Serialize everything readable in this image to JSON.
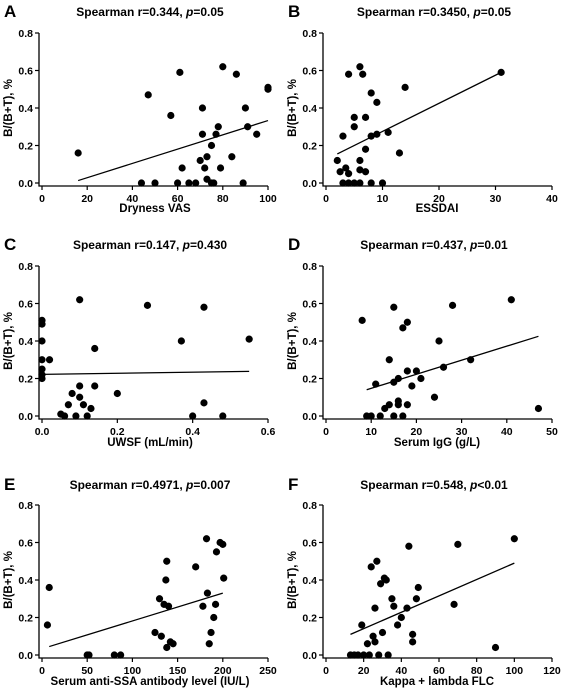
{
  "chart_data": [
    {
      "letter": "A",
      "type": "scatter",
      "title_prefix": "Spearman r=0.344, ",
      "title_p": "p",
      "title_suffix": "=0.05",
      "xlabel": "Dryness VAS",
      "ylabel": "B/(B+T), %",
      "xlim": [
        0,
        100
      ],
      "ylim": [
        0,
        0.8
      ],
      "xticks": [
        0,
        20,
        40,
        60,
        80,
        100
      ],
      "yticks": [
        0.0,
        0.2,
        0.4,
        0.6,
        0.8
      ],
      "xtick_labels": [
        "0",
        "20",
        "40",
        "60",
        "80",
        "100"
      ],
      "ytick_labels": [
        "0.0",
        "0.2",
        "0.4",
        "0.6",
        "0.8"
      ],
      "fit": [
        [
          16,
          0.013
        ],
        [
          100,
          0.333
        ]
      ],
      "points": [
        [
          16,
          0.16
        ],
        [
          44,
          0.0
        ],
        [
          47,
          0.47
        ],
        [
          50,
          0.0
        ],
        [
          57,
          0.36
        ],
        [
          60,
          0.0
        ],
        [
          61,
          0.59
        ],
        [
          62,
          0.08
        ],
        [
          65,
          0.0
        ],
        [
          68,
          0.0
        ],
        [
          70,
          0.12
        ],
        [
          71,
          0.26
        ],
        [
          71,
          0.4
        ],
        [
          72,
          0.08
        ],
        [
          73,
          0.02
        ],
        [
          73,
          0.14
        ],
        [
          75,
          0.2
        ],
        [
          75,
          0.0
        ],
        [
          76,
          0.0
        ],
        [
          77,
          0.26
        ],
        [
          78,
          0.3
        ],
        [
          79,
          0.08
        ],
        [
          80,
          0.62
        ],
        [
          84,
          0.14
        ],
        [
          86,
          0.58
        ],
        [
          89,
          0.0
        ],
        [
          90,
          0.4
        ],
        [
          91,
          0.3
        ],
        [
          95,
          0.26
        ],
        [
          100,
          0.5
        ],
        [
          100,
          0.51
        ]
      ]
    },
    {
      "letter": "B",
      "type": "scatter",
      "title_prefix": "Spearman r=0.3450, ",
      "title_p": "p",
      "title_suffix": "=0.05",
      "xlabel": "ESSDAI",
      "ylabel": "B/(B+T), %",
      "xlim": [
        0,
        40
      ],
      "ylim": [
        0,
        0.8
      ],
      "xticks": [
        0,
        10,
        20,
        30,
        40
      ],
      "yticks": [
        0.0,
        0.2,
        0.4,
        0.6,
        0.8
      ],
      "xtick_labels": [
        "0",
        "10",
        "20",
        "30",
        "40"
      ],
      "ytick_labels": [
        "0.0",
        "0.2",
        "0.4",
        "0.6",
        "0.8"
      ],
      "fit": [
        [
          2,
          0.155
        ],
        [
          31,
          0.59
        ]
      ],
      "points": [
        [
          2,
          0.12
        ],
        [
          2.5,
          0.06
        ],
        [
          3,
          0.25
        ],
        [
          3,
          0.0
        ],
        [
          3.5,
          0.08
        ],
        [
          4,
          0.0
        ],
        [
          4,
          0.05
        ],
        [
          4,
          0.58
        ],
        [
          5,
          0.0
        ],
        [
          5,
          0.3
        ],
        [
          5,
          0.35
        ],
        [
          6,
          0.07
        ],
        [
          6,
          0.12
        ],
        [
          6,
          0.62
        ],
        [
          6,
          0.0
        ],
        [
          6.5,
          0.58
        ],
        [
          7,
          0.35
        ],
        [
          7,
          0.18
        ],
        [
          7,
          0.06
        ],
        [
          8,
          0.0
        ],
        [
          8,
          0.48
        ],
        [
          8,
          0.25
        ],
        [
          9,
          0.26
        ],
        [
          9,
          0.43
        ],
        [
          10,
          0.0
        ],
        [
          11,
          0.27
        ],
        [
          13,
          0.16
        ],
        [
          14,
          0.51
        ],
        [
          31,
          0.59
        ]
      ]
    },
    {
      "letter": "C",
      "type": "scatter",
      "title_prefix": "Spearman r=0.147, ",
      "title_p": "p",
      "title_suffix": "=0.430",
      "xlabel": "UWSF (mL/min)",
      "ylabel": "B/(B+T), %",
      "xlim": [
        0,
        0.6
      ],
      "ylim": [
        0,
        0.8
      ],
      "xticks": [
        0,
        0.2,
        0.4,
        0.6
      ],
      "yticks": [
        0.0,
        0.2,
        0.4,
        0.6,
        0.8
      ],
      "xtick_labels": [
        "0.0",
        "0.2",
        "0.4",
        "0.6"
      ],
      "ytick_labels": [
        "0.0",
        "0.2",
        "0.4",
        "0.6",
        "0.8"
      ],
      "fit": [
        [
          0,
          0.222
        ],
        [
          0.55,
          0.238
        ]
      ],
      "points": [
        [
          0,
          0.51
        ],
        [
          0,
          0.49
        ],
        [
          0,
          0.4
        ],
        [
          0,
          0.3
        ],
        [
          0,
          0.25
        ],
        [
          0,
          0.22
        ],
        [
          0,
          0.2
        ],
        [
          0.02,
          0.3
        ],
        [
          0.05,
          0.01
        ],
        [
          0.06,
          0.0
        ],
        [
          0.07,
          0.06
        ],
        [
          0.08,
          0.12
        ],
        [
          0.09,
          0.0
        ],
        [
          0.1,
          0.62
        ],
        [
          0.1,
          0.16
        ],
        [
          0.1,
          0.1
        ],
        [
          0.11,
          0.06
        ],
        [
          0.12,
          0.0
        ],
        [
          0.13,
          0.04
        ],
        [
          0.14,
          0.36
        ],
        [
          0.14,
          0.16
        ],
        [
          0.2,
          0.12
        ],
        [
          0.28,
          0.59
        ],
        [
          0.37,
          0.4
        ],
        [
          0.4,
          0.0
        ],
        [
          0.43,
          0.58
        ],
        [
          0.43,
          0.07
        ],
        [
          0.48,
          0.0
        ],
        [
          0.55,
          0.41
        ]
      ]
    },
    {
      "letter": "D",
      "type": "scatter",
      "title_prefix": "Spearman r=0.437, ",
      "title_p": "p",
      "title_suffix": "=0.01",
      "xlabel": "Serum IgG (g/L)",
      "ylabel": "B/(B+T), %",
      "xlim": [
        0,
        50
      ],
      "ylim": [
        0,
        0.8
      ],
      "xticks": [
        0,
        10,
        20,
        30,
        40,
        50
      ],
      "yticks": [
        0.0,
        0.2,
        0.4,
        0.6,
        0.8
      ],
      "xtick_labels": [
        "0",
        "10",
        "20",
        "30",
        "40",
        "50"
      ],
      "ytick_labels": [
        "0.0",
        "0.2",
        "0.4",
        "0.6",
        "0.8"
      ],
      "fit": [
        [
          9,
          0.14
        ],
        [
          47,
          0.425
        ]
      ],
      "points": [
        [
          8,
          0.51
        ],
        [
          9,
          0.0
        ],
        [
          10,
          0.0
        ],
        [
          11,
          0.17
        ],
        [
          12,
          0.0
        ],
        [
          13,
          0.04
        ],
        [
          14,
          0.06
        ],
        [
          14,
          0.3
        ],
        [
          15,
          0.58
        ],
        [
          15,
          0.18
        ],
        [
          15,
          0.0
        ],
        [
          16,
          0.06
        ],
        [
          16,
          0.2
        ],
        [
          16,
          0.08
        ],
        [
          17,
          0.47
        ],
        [
          17,
          0.0
        ],
        [
          18,
          0.24
        ],
        [
          18,
          0.5
        ],
        [
          18,
          0.06
        ],
        [
          19,
          0.16
        ],
        [
          20,
          0.24
        ],
        [
          21,
          0.2
        ],
        [
          24,
          0.1
        ],
        [
          25,
          0.4
        ],
        [
          26,
          0.26
        ],
        [
          28,
          0.59
        ],
        [
          32,
          0.3
        ],
        [
          41,
          0.62
        ],
        [
          47,
          0.04
        ]
      ]
    },
    {
      "letter": "E",
      "type": "scatter",
      "title_prefix": "Spearman r=0.4971, ",
      "title_p": "p",
      "title_suffix": "=0.007",
      "xlabel": "Serum anti-SSA antibody level (IU/L)",
      "ylabel": "B/(B+T), %",
      "xlim": [
        0,
        250
      ],
      "ylim": [
        0,
        0.8
      ],
      "xticks": [
        0,
        50,
        100,
        150,
        200,
        250
      ],
      "yticks": [
        0.0,
        0.2,
        0.4,
        0.6,
        0.8
      ],
      "xtick_labels": [
        "0",
        "50",
        "100",
        "150",
        "200",
        "250"
      ],
      "ytick_labels": [
        "0.0",
        "0.2",
        "0.4",
        "0.6",
        "0.8"
      ],
      "fit": [
        [
          8,
          0.045
        ],
        [
          200,
          0.33
        ]
      ],
      "points": [
        [
          6,
          0.16
        ],
        [
          8,
          0.36
        ],
        [
          50,
          0.0
        ],
        [
          52,
          0.0
        ],
        [
          80,
          0.0
        ],
        [
          87,
          0.0
        ],
        [
          125,
          0.12
        ],
        [
          130,
          0.3
        ],
        [
          132,
          0.1
        ],
        [
          135,
          0.27
        ],
        [
          137,
          0.4
        ],
        [
          138,
          0.5
        ],
        [
          138,
          0.04
        ],
        [
          140,
          0.26
        ],
        [
          142,
          0.07
        ],
        [
          145,
          0.06
        ],
        [
          170,
          0.47
        ],
        [
          178,
          0.26
        ],
        [
          182,
          0.62
        ],
        [
          183,
          0.33
        ],
        [
          185,
          0.06
        ],
        [
          187,
          0.12
        ],
        [
          190,
          0.2
        ],
        [
          192,
          0.27
        ],
        [
          193,
          0.55
        ],
        [
          197,
          0.6
        ],
        [
          200,
          0.59
        ],
        [
          201,
          0.41
        ]
      ]
    },
    {
      "letter": "F",
      "type": "scatter",
      "title_prefix": "Spearman r=0.548, ",
      "title_p": "p",
      "title_suffix": "<0.01",
      "xlabel": "Kappa + lambda FLC",
      "ylabel": "B/(B+T), %",
      "xlim": [
        0,
        120
      ],
      "ylim": [
        0,
        0.8
      ],
      "xticks": [
        0,
        20,
        40,
        60,
        80,
        100,
        120
      ],
      "yticks": [
        0.0,
        0.2,
        0.4,
        0.6,
        0.8
      ],
      "xtick_labels": [
        "0",
        "20",
        "40",
        "60",
        "80",
        "100",
        "120"
      ],
      "ytick_labels": [
        "0.0",
        "0.2",
        "0.4",
        "0.6",
        "0.8"
      ],
      "fit": [
        [
          13,
          0.11
        ],
        [
          100,
          0.49
        ]
      ],
      "points": [
        [
          13,
          0.0
        ],
        [
          15,
          0.0
        ],
        [
          17,
          0.0
        ],
        [
          19,
          0.16
        ],
        [
          20,
          0.0
        ],
        [
          22,
          0.06
        ],
        [
          23,
          0.0
        ],
        [
          24,
          0.47
        ],
        [
          25,
          0.1
        ],
        [
          26,
          0.25
        ],
        [
          26,
          0.07
        ],
        [
          27,
          0.5
        ],
        [
          28,
          0.0
        ],
        [
          29,
          0.38
        ],
        [
          30,
          0.12
        ],
        [
          31,
          0.41
        ],
        [
          32,
          0.4
        ],
        [
          33,
          0.0
        ],
        [
          35,
          0.3
        ],
        [
          36,
          0.26
        ],
        [
          38,
          0.16
        ],
        [
          40,
          0.2
        ],
        [
          43,
          0.25
        ],
        [
          44,
          0.58
        ],
        [
          46,
          0.07
        ],
        [
          46,
          0.11
        ],
        [
          48,
          0.3
        ],
        [
          49,
          0.36
        ],
        [
          68,
          0.27
        ],
        [
          70,
          0.59
        ],
        [
          90,
          0.04
        ],
        [
          100,
          0.62
        ]
      ]
    }
  ]
}
